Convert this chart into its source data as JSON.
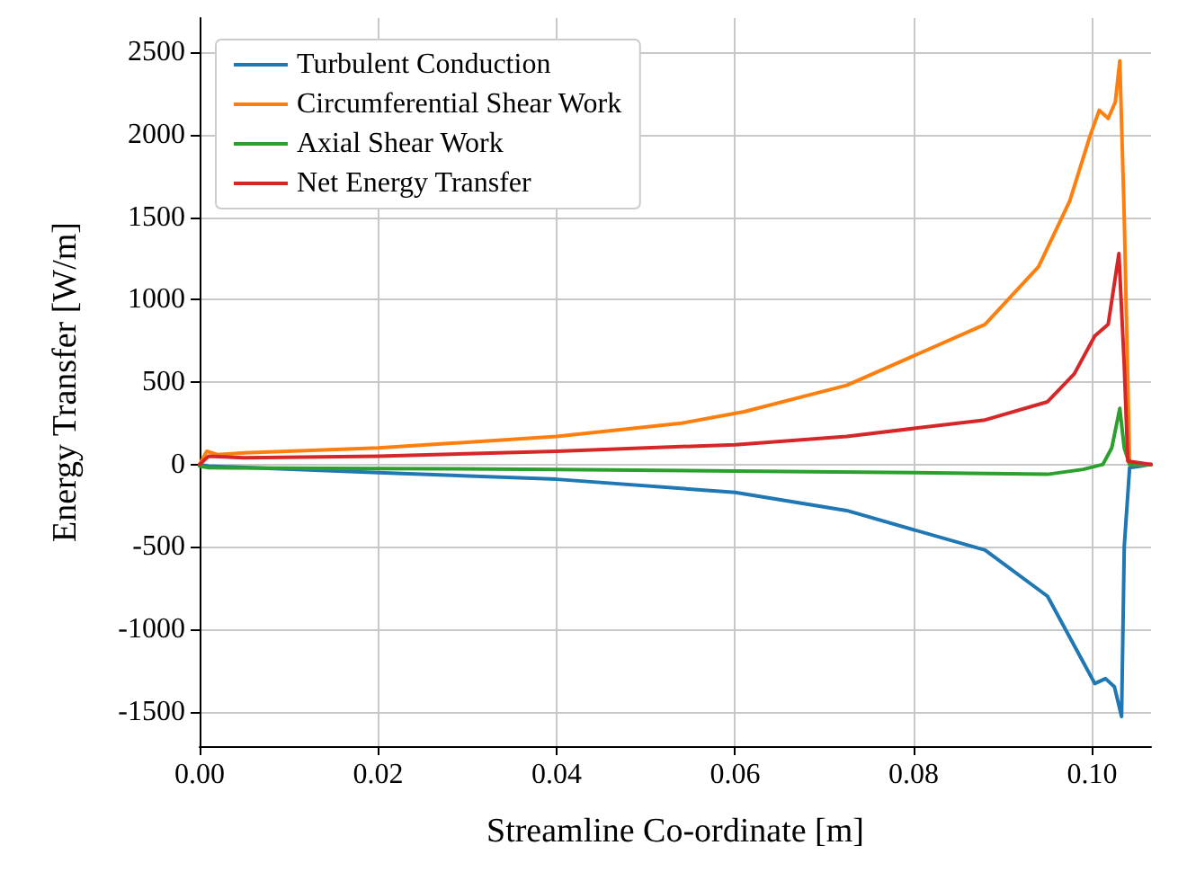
{
  "chart_data": {
    "type": "line",
    "xlabel": "Streamline Co-ordinate [m]",
    "ylabel": "Energy Transfer [W/m]",
    "xlim": [
      0,
      0.1066
    ],
    "ylim": [
      -1710,
      2710
    ],
    "xticks": [
      {
        "value": 0,
        "label": "0.00"
      },
      {
        "value": 0.02,
        "label": "0.02"
      },
      {
        "value": 0.04,
        "label": "0.04"
      },
      {
        "value": 0.06,
        "label": "0.06"
      },
      {
        "value": 0.08,
        "label": "0.08"
      },
      {
        "value": 0.1,
        "label": "0.10"
      }
    ],
    "yticks": [
      -1500,
      -1000,
      -500,
      0,
      500,
      1000,
      1500,
      2000,
      2500
    ],
    "grid": true,
    "legend": "top left",
    "marker": "none",
    "line_style": "solid",
    "series": [
      {
        "name": "Turbulent Conduction",
        "color": "#1f77b4",
        "x": [
          0,
          0.001,
          0.02,
          0.04,
          0.06,
          0.0725,
          0.088,
          0.095,
          0.099,
          0.1003,
          0.1015,
          0.1025,
          0.1033,
          0.1036,
          0.1042,
          0.1066
        ],
        "values": [
          0,
          -10,
          -50,
          -90,
          -170,
          -280,
          -520,
          -800,
          -1200,
          -1330,
          -1300,
          -1350,
          -1530,
          -500,
          -20,
          0
        ]
      },
      {
        "name": "Circumferential Shear Work",
        "color": "#ff7f0e",
        "x": [
          0,
          0.0008,
          0.002,
          0.005,
          0.02,
          0.04,
          0.054,
          0.061,
          0.0725,
          0.088,
          0.094,
          0.0975,
          0.0998,
          0.1008,
          0.1018,
          0.1026,
          0.1031,
          0.1036,
          0.1042,
          0.1066
        ],
        "values": [
          0,
          80,
          60,
          70,
          100,
          170,
          250,
          320,
          480,
          850,
          1200,
          1600,
          2000,
          2150,
          2100,
          2200,
          2450,
          1500,
          0,
          0
        ]
      },
      {
        "name": "Axial Shear Work",
        "color": "#2ca02c",
        "x": [
          0,
          0.001,
          0.02,
          0.04,
          0.06,
          0.08,
          0.095,
          0.099,
          0.1012,
          0.1022,
          0.1031,
          0.1036,
          0.1042,
          0.1066
        ],
        "values": [
          -10,
          -20,
          -25,
          -30,
          -40,
          -50,
          -60,
          -30,
          0,
          100,
          340,
          100,
          0,
          0
        ]
      },
      {
        "name": "Net Energy Transfer",
        "color": "#d62728",
        "x": [
          0,
          0.001,
          0.005,
          0.02,
          0.04,
          0.06,
          0.0725,
          0.088,
          0.095,
          0.098,
          0.1003,
          0.1018,
          0.103,
          0.1036,
          0.104,
          0.1066
        ],
        "values": [
          0,
          50,
          40,
          50,
          80,
          120,
          170,
          270,
          380,
          550,
          780,
          850,
          1280,
          600,
          20,
          0
        ]
      }
    ]
  }
}
